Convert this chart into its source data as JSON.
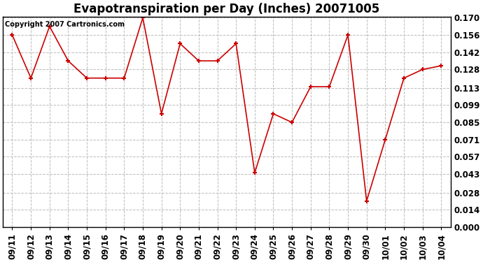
{
  "title": "Evapotranspiration per Day (Inches) 20071005",
  "copyright_text": "Copyright 2007 Cartronics.com",
  "dates": [
    "09/11",
    "09/12",
    "09/13",
    "09/14",
    "09/15",
    "09/16",
    "09/17",
    "09/18",
    "09/19",
    "09/20",
    "09/21",
    "09/22",
    "09/23",
    "09/24",
    "09/25",
    "09/26",
    "09/27",
    "09/28",
    "09/29",
    "09/30",
    "10/01",
    "10/02",
    "10/03",
    "10/04"
  ],
  "values": [
    0.156,
    0.121,
    0.163,
    0.135,
    0.121,
    0.121,
    0.121,
    0.17,
    0.092,
    0.149,
    0.135,
    0.135,
    0.149,
    0.044,
    0.092,
    0.085,
    0.114,
    0.114,
    0.156,
    0.021,
    0.071,
    0.121,
    0.128,
    0.131
  ],
  "line_color": "#cc0000",
  "marker": "+",
  "ylim": [
    0.0,
    0.17
  ],
  "yticks": [
    0.0,
    0.014,
    0.028,
    0.043,
    0.057,
    0.071,
    0.085,
    0.099,
    0.113,
    0.128,
    0.142,
    0.156,
    0.17
  ],
  "bg_color": "#ffffff",
  "grid_color": "#bbbbbb",
  "title_fontsize": 12,
  "copyright_fontsize": 7,
  "tick_fontsize": 8.5
}
